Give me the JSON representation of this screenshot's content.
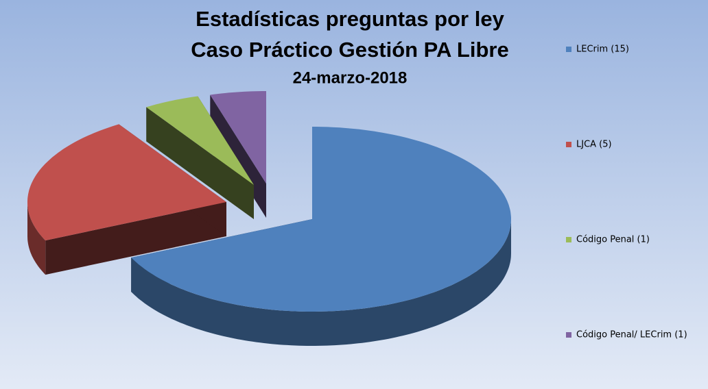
{
  "chart_data": {
    "type": "pie3d",
    "title": "Estadísticas preguntas por ley",
    "subtitle": "Caso Práctico Gestión PA Libre",
    "date": "24-marzo-2018",
    "categories": [
      "LECrim (15)",
      "LJCA (5)",
      "Código Penal (1)",
      "Código Penal/ LECrim (1)"
    ],
    "values": [
      15,
      5,
      1,
      1
    ],
    "colors": [
      "#4f81bd",
      "#c0504d",
      "#9bbb59",
      "#8064a2"
    ],
    "legend": "right"
  }
}
